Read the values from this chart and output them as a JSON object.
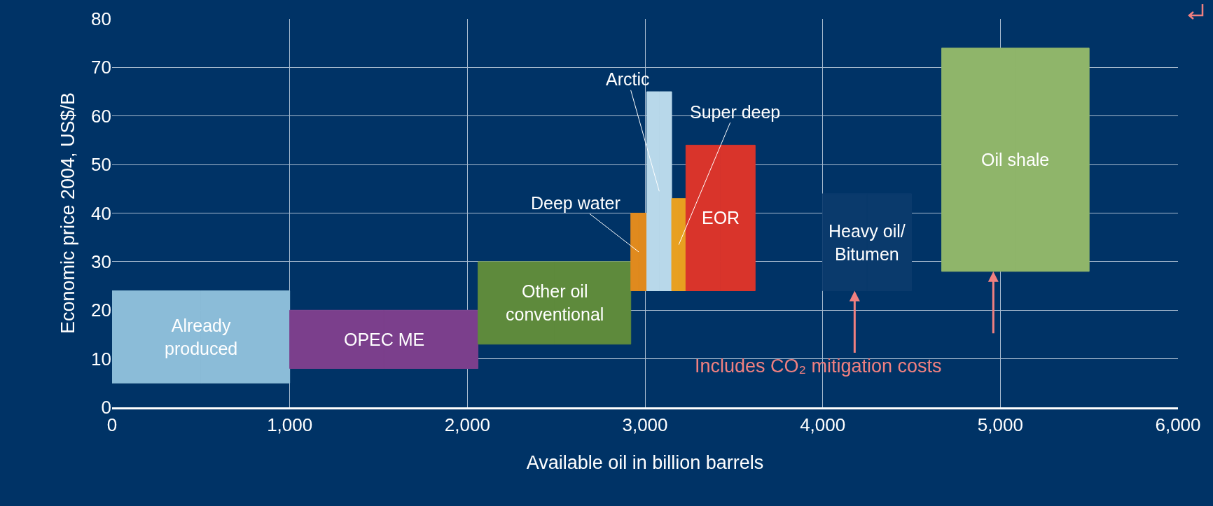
{
  "chart_data": {
    "type": "bar",
    "xlabel": "Available oil in billion barrels",
    "ylabel": "Economic price 2004, US$/B",
    "xlim": [
      0,
      6000
    ],
    "xticks": [
      {
        "value": 0,
        "label": "0"
      },
      {
        "value": 1000,
        "label": "1,000"
      },
      {
        "value": 2000,
        "label": "2,000"
      },
      {
        "value": 3000,
        "label": "3,000"
      },
      {
        "value": 4000,
        "label": "4,000"
      },
      {
        "value": 5000,
        "label": "5,000"
      },
      {
        "value": 6000,
        "label": "6,000"
      }
    ],
    "ylim": [
      0,
      80
    ],
    "yticks": [
      0,
      10,
      20,
      30,
      40,
      50,
      60,
      70,
      80
    ],
    "grid": true,
    "series": [
      {
        "name": "Already produced",
        "color": "#8bbcd8",
        "x": [
          0,
          1000
        ],
        "values": [
          19,
          19
        ],
        "base": [
          5,
          5
        ]
      },
      {
        "name": "OPEC ME",
        "color": "#7b3f8c",
        "x": [
          1000,
          2060
        ],
        "values": [
          12,
          12
        ],
        "base": [
          8,
          8
        ]
      },
      {
        "name": "Other oil conventional",
        "color": "#5e8a3c",
        "x": [
          2060,
          2920
        ],
        "values": [
          17,
          17
        ],
        "base": [
          13,
          13
        ]
      },
      {
        "name": "Deep water",
        "color": "#e08a1e",
        "x": [
          2920,
          3010
        ],
        "values": [
          16,
          16
        ],
        "base": [
          24,
          24
        ]
      },
      {
        "name": "Arctic",
        "color": "#b8d8ea",
        "x": [
          3010,
          3150
        ],
        "values": [
          41,
          41
        ],
        "base": [
          24,
          24
        ]
      },
      {
        "name": "Super deep",
        "color": "#e8a020",
        "x": [
          3150,
          3230
        ],
        "values": [
          19,
          19
        ],
        "base": [
          24,
          24
        ]
      },
      {
        "name": "EOR",
        "color": "#d9342b",
        "x": [
          3230,
          3620
        ],
        "values": [
          30,
          30
        ],
        "base": [
          24,
          24
        ]
      },
      {
        "name": "Heavy oil/ Bitumen",
        "color": "#0a3a6c",
        "x": [
          4000,
          4500
        ],
        "values": [
          20,
          20
        ],
        "base": [
          24,
          24
        ]
      },
      {
        "name": "Oil shale",
        "color": "#8fb56a",
        "x": [
          4670,
          5500
        ],
        "values": [
          46,
          46
        ],
        "base": [
          28,
          28
        ]
      }
    ],
    "annotations": [
      {
        "text": "Includes CO₂ mitigation costs",
        "x": 4180,
        "y": 24
      }
    ]
  }
}
